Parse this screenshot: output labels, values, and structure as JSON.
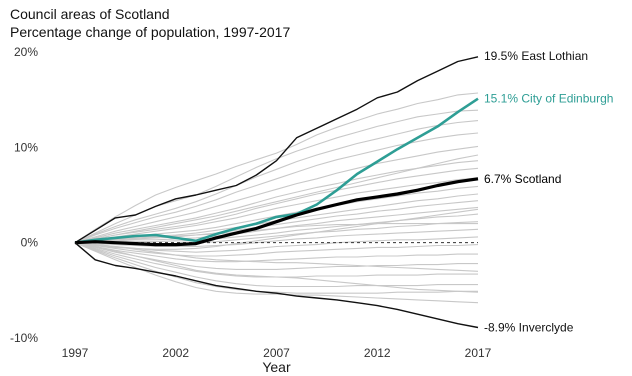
{
  "chart_data": {
    "type": "line",
    "title": "Council areas of Scotland",
    "subtitle": "Percentage change of population, 1997-2017",
    "xlabel": "Year",
    "ylabel": "",
    "x": [
      1997,
      1998,
      1999,
      2000,
      2001,
      2002,
      2003,
      2004,
      2005,
      2006,
      2007,
      2008,
      2009,
      2010,
      2011,
      2012,
      2013,
      2014,
      2015,
      2016,
      2017
    ],
    "xticks": [
      "1997",
      "2002",
      "2007",
      "2012",
      "2017"
    ],
    "yticks": [
      "20%",
      "10%",
      "0%",
      "-10%"
    ],
    "ylim": [
      -10,
      20
    ],
    "reference_line": 0,
    "grid": false,
    "highlighted_series": [
      {
        "name": "East Lothian",
        "label": "19.5% East Lothian",
        "color": "#111111",
        "values": [
          0,
          1.3,
          2.6,
          2.9,
          3.8,
          4.6,
          5.0,
          5.5,
          6.0,
          7.1,
          8.6,
          11.0,
          12.0,
          13.0,
          14.0,
          15.2,
          15.8,
          17.0,
          18.0,
          19.0,
          19.5
        ]
      },
      {
        "name": "City of Edinburgh",
        "label": "15.1% City of Edinburgh",
        "color": "#2e9e95",
        "values": [
          0,
          0.3,
          0.5,
          0.7,
          0.8,
          0.5,
          0.2,
          0.9,
          1.5,
          2.0,
          2.7,
          3.0,
          4.0,
          5.5,
          7.2,
          8.5,
          9.8,
          11.0,
          12.2,
          13.7,
          15.1
        ]
      },
      {
        "name": "Scotland",
        "label": "6.7% Scotland",
        "color": "#000000",
        "values": [
          0,
          0.1,
          0.0,
          -0.1,
          -0.2,
          -0.2,
          -0.1,
          0.5,
          1.0,
          1.5,
          2.2,
          2.9,
          3.5,
          4.0,
          4.5,
          4.8,
          5.1,
          5.5,
          6.0,
          6.4,
          6.7
        ]
      },
      {
        "name": "Inverclyde",
        "label": "-8.9% Inverclyde",
        "color": "#111111",
        "values": [
          0,
          -1.8,
          -2.4,
          -2.7,
          -3.1,
          -3.5,
          -4.0,
          -4.5,
          -4.8,
          -5.1,
          -5.3,
          -5.6,
          -5.8,
          -6.0,
          -6.3,
          -6.6,
          -7.0,
          -7.5,
          -8.0,
          -8.5,
          -8.9
        ]
      }
    ],
    "background_series": [
      {
        "values": [
          0,
          1.4,
          2.7,
          3.9,
          5.0,
          5.8,
          6.5,
          7.2,
          8.0,
          8.7,
          9.4,
          10.3,
          11.3,
          12.1,
          12.8,
          13.5,
          14.0,
          14.6,
          15.0,
          15.5,
          15.7
        ]
      },
      {
        "values": [
          0,
          1.0,
          2.0,
          2.9,
          3.8,
          4.4,
          5.0,
          5.9,
          6.9,
          7.9,
          8.8,
          9.6,
          10.3,
          11.0,
          11.6,
          12.2,
          12.7,
          13.2,
          13.5,
          13.8,
          13.9
        ]
      },
      {
        "values": [
          0,
          0.9,
          1.7,
          2.4,
          3.0,
          3.6,
          4.3,
          5.1,
          6.0,
          6.9,
          7.7,
          8.5,
          9.2,
          9.8,
          10.4,
          10.9,
          11.4,
          11.9,
          12.3,
          12.6,
          12.8
        ]
      },
      {
        "values": [
          0,
          0.8,
          1.5,
          2.1,
          2.7,
          3.2,
          3.8,
          4.5,
          5.3,
          6.0,
          6.7,
          7.4,
          8.1,
          8.7,
          9.2,
          9.7,
          10.2,
          10.6,
          11.0,
          11.3,
          11.5
        ]
      },
      {
        "values": [
          0,
          0.6,
          1.2,
          1.7,
          2.2,
          2.7,
          3.2,
          3.8,
          4.4,
          5.0,
          5.6,
          6.2,
          6.7,
          7.3,
          7.8,
          8.3,
          8.7,
          9.1,
          9.5,
          9.8,
          10.1
        ]
      },
      {
        "values": [
          0,
          0.5,
          1.0,
          1.4,
          1.8,
          2.2,
          2.6,
          3.1,
          3.6,
          4.2,
          4.8,
          5.3,
          5.8,
          6.2,
          6.7,
          7.1,
          7.5,
          7.8,
          8.1,
          8.4,
          8.6
        ]
      },
      {
        "values": [
          0,
          0.4,
          0.8,
          1.1,
          1.4,
          1.7,
          2.0,
          2.5,
          3.0,
          3.6,
          4.1,
          4.6,
          5.1,
          5.5,
          5.9,
          6.3,
          6.7,
          7.0,
          7.3,
          7.6,
          7.8
        ]
      },
      {
        "values": [
          0,
          0.3,
          0.6,
          0.9,
          1.2,
          1.5,
          1.8,
          2.2,
          2.6,
          3.1,
          3.6,
          4.0,
          4.4,
          4.8,
          5.2,
          5.5,
          5.8,
          6.1,
          6.3,
          6.6,
          6.8
        ]
      },
      {
        "values": [
          0,
          0.3,
          0.5,
          0.7,
          0.9,
          1.1,
          1.3,
          1.6,
          2.0,
          2.4,
          2.8,
          3.2,
          3.6,
          3.9,
          4.3,
          4.6,
          4.9,
          5.2,
          5.4,
          5.7,
          5.9
        ]
      },
      {
        "values": [
          0,
          0.2,
          0.4,
          0.6,
          0.7,
          0.8,
          1.0,
          1.3,
          1.6,
          1.9,
          2.3,
          2.6,
          2.9,
          3.2,
          3.5,
          3.8,
          4.1,
          4.4,
          4.6,
          4.9,
          5.1
        ]
      },
      {
        "values": [
          0,
          0.2,
          0.3,
          0.4,
          0.5,
          0.6,
          0.8,
          1.0,
          1.3,
          1.6,
          1.9,
          2.2,
          2.5,
          2.8,
          3.0,
          3.3,
          3.5,
          3.8,
          4.0,
          4.2,
          4.4
        ]
      },
      {
        "values": [
          0,
          0.1,
          0.2,
          0.3,
          0.3,
          0.4,
          0.5,
          0.7,
          0.9,
          1.2,
          1.5,
          1.8,
          2.0,
          2.3,
          2.5,
          2.7,
          2.9,
          3.1,
          3.3,
          3.5,
          3.7
        ]
      },
      {
        "values": [
          0,
          0.1,
          0.1,
          0.1,
          0.1,
          0.2,
          0.2,
          0.4,
          0.6,
          0.8,
          1.0,
          1.3,
          1.5,
          1.7,
          1.9,
          2.1,
          2.3,
          2.5,
          2.7,
          2.8,
          3.0
        ]
      },
      {
        "values": [
          0,
          0.0,
          0.0,
          -0.1,
          -0.1,
          -0.1,
          0.0,
          0.1,
          0.3,
          0.5,
          0.7,
          0.9,
          1.1,
          1.2,
          1.4,
          1.5,
          1.7,
          1.8,
          2.0,
          2.1,
          2.2
        ]
      },
      {
        "values": [
          0,
          -0.1,
          -0.2,
          -0.3,
          -0.4,
          -0.4,
          -0.4,
          -0.3,
          -0.2,
          0.0,
          0.2,
          0.4,
          0.5,
          0.7,
          0.8,
          0.9,
          1.0,
          1.1,
          1.2,
          1.3,
          1.4
        ]
      },
      {
        "values": [
          0,
          -0.2,
          -0.4,
          -0.6,
          -0.8,
          -0.9,
          -1.0,
          -0.9,
          -0.8,
          -0.6,
          -0.4,
          -0.3,
          -0.2,
          0.0,
          0.1,
          0.2,
          0.3,
          0.3,
          0.4,
          0.5,
          0.6
        ]
      },
      {
        "values": [
          0,
          -0.3,
          -0.6,
          -0.9,
          -1.1,
          -1.3,
          -1.4,
          -1.4,
          -1.3,
          -1.2,
          -1.0,
          -0.9,
          -0.8,
          -0.7,
          -0.6,
          -0.5,
          -0.5,
          -0.4,
          -0.3,
          -0.3,
          -0.2
        ]
      },
      {
        "values": [
          0,
          -0.4,
          -0.8,
          -1.1,
          -1.4,
          -1.7,
          -1.9,
          -2.0,
          -2.0,
          -1.9,
          -1.8,
          -1.7,
          -1.6,
          -1.5,
          -1.5,
          -1.4,
          -1.4,
          -1.3,
          -1.3,
          -1.2,
          -1.2
        ]
      },
      {
        "values": [
          0,
          -0.5,
          -1.0,
          -1.4,
          -1.8,
          -2.2,
          -2.5,
          -2.7,
          -2.8,
          -2.8,
          -2.8,
          -2.7,
          -2.6,
          -2.5,
          -2.5,
          -2.4,
          -2.4,
          -2.3,
          -2.3,
          -2.2,
          -2.2
        ]
      },
      {
        "values": [
          0,
          -0.6,
          -1.2,
          -1.7,
          -2.2,
          -2.6,
          -3.0,
          -3.3,
          -3.5,
          -3.6,
          -3.6,
          -3.6,
          -3.5,
          -3.5,
          -3.5,
          -3.4,
          -3.4,
          -3.4,
          -3.3,
          -3.3,
          -3.3
        ]
      },
      {
        "values": [
          0,
          -0.7,
          -1.4,
          -2.0,
          -2.6,
          -3.1,
          -3.6,
          -4.0,
          -4.3,
          -4.5,
          -4.6,
          -4.6,
          -4.6,
          -4.6,
          -4.5,
          -4.5,
          -4.5,
          -4.5,
          -4.4,
          -4.4,
          -4.4
        ]
      },
      {
        "values": [
          0,
          -0.8,
          -1.6,
          -2.3,
          -3.0,
          -3.6,
          -4.2,
          -4.6,
          -4.9,
          -5.1,
          -5.2,
          -5.3,
          -5.3,
          -5.3,
          -5.3,
          -5.3,
          -5.2,
          -5.2,
          -5.2,
          -5.1,
          -5.1
        ]
      },
      {
        "values": [
          0,
          -0.9,
          -1.8,
          -2.6,
          -3.4,
          -4.1,
          -4.7,
          -5.1,
          -5.3,
          -5.4,
          -5.4,
          -5.5,
          -5.5,
          -5.6,
          -5.7,
          -5.8,
          -5.9,
          -6.0,
          -6.1,
          -6.2,
          -6.3
        ]
      },
      {
        "values": [
          0,
          -0.4,
          -0.9,
          -1.4,
          -1.9,
          -2.4,
          -2.9,
          -3.2,
          -3.4,
          -3.5,
          -3.6,
          -3.7,
          -3.9,
          -4.1,
          -4.3,
          -4.5,
          -4.7,
          -4.9,
          -5.0,
          -5.1,
          -5.2
        ]
      },
      {
        "values": [
          0,
          0.4,
          0.8,
          1.2,
          1.6,
          2.0,
          2.4,
          2.8,
          3.3,
          3.8,
          4.3,
          4.8,
          5.3,
          5.8,
          6.3,
          6.8,
          7.3,
          7.8,
          8.3,
          8.8,
          9.2
        ]
      },
      {
        "values": [
          0,
          -0.3,
          -0.5,
          -0.6,
          -0.7,
          -0.7,
          -0.6,
          -0.4,
          -0.1,
          0.2,
          0.5,
          0.8,
          1.1,
          1.4,
          1.7,
          2.0,
          2.3,
          2.6,
          2.9,
          3.2,
          3.5
        ]
      },
      {
        "values": [
          0,
          0.2,
          0.4,
          0.5,
          0.6,
          0.7,
          0.8,
          0.9,
          1.1,
          1.3,
          1.5,
          1.7,
          1.8,
          1.9,
          1.9,
          2.0,
          2.0,
          2.0,
          2.0,
          2.0,
          2.0
        ]
      },
      {
        "values": [
          0,
          -0.2,
          -0.4,
          -0.7,
          -1.0,
          -1.3,
          -1.6,
          -1.8,
          -1.9,
          -2.0,
          -2.1,
          -2.1,
          -2.2,
          -2.3,
          -2.4,
          -2.5,
          -2.6,
          -2.7,
          -2.8,
          -2.9,
          -3.0
        ]
      }
    ]
  }
}
